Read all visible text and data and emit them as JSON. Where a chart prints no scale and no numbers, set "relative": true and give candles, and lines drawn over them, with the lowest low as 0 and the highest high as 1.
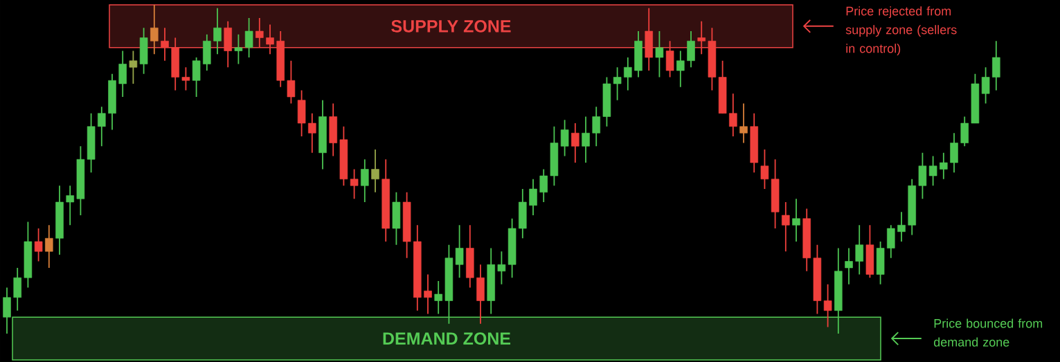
{
  "chart_data": {
    "type": "candlestick",
    "relative": true,
    "categories": [
      null,
      null,
      null,
      null,
      null,
      null,
      null,
      null,
      null,
      null,
      null,
      null,
      null,
      null,
      null,
      null,
      null,
      null,
      null,
      null,
      null,
      null,
      null,
      null,
      null,
      null,
      null,
      null,
      null,
      null,
      null,
      null,
      null,
      null,
      null,
      null,
      null,
      null,
      null,
      null,
      null,
      null,
      null,
      null,
      null,
      null,
      null,
      null,
      null,
      null,
      null,
      null,
      null,
      null,
      null,
      null,
      null,
      null,
      null,
      null,
      null,
      null,
      null,
      null,
      null,
      null,
      null,
      null,
      null,
      null,
      null,
      null,
      null,
      null,
      null,
      null,
      null,
      null,
      null,
      null,
      null,
      null,
      null,
      null,
      null,
      null,
      null,
      null,
      null,
      null,
      null,
      null,
      null,
      null,
      null
    ],
    "ohlc": [
      [
        0.05,
        0.14,
        0,
        0.11
      ],
      [
        0.11,
        0.2,
        0.07,
        0.17
      ],
      [
        0.17,
        0.34,
        0.14,
        0.28
      ],
      [
        0.28,
        0.32,
        0.22,
        0.25
      ],
      [
        0.29,
        0.33,
        0.2,
        0.25
      ],
      [
        0.29,
        0.45,
        0.24,
        0.4
      ],
      [
        0.4,
        0.45,
        0.33,
        0.42
      ],
      [
        0.41,
        0.57,
        0.36,
        0.53
      ],
      [
        0.53,
        0.67,
        0.49,
        0.63
      ],
      [
        0.63,
        0.69,
        0.57,
        0.67
      ],
      [
        0.67,
        0.79,
        0.62,
        0.77
      ],
      [
        0.76,
        0.86,
        0.72,
        0.82
      ],
      [
        0.81,
        0.86,
        0.76,
        0.83
      ],
      [
        0.82,
        0.93,
        0.79,
        0.9
      ],
      [
        0.93,
        1,
        0.85,
        0.89
      ],
      [
        0.89,
        0.93,
        0.83,
        0.87
      ],
      [
        0.87,
        0.9,
        0.74,
        0.78
      ],
      [
        0.78,
        0.81,
        0.74,
        0.77
      ],
      [
        0.77,
        0.84,
        0.72,
        0.83
      ],
      [
        0.82,
        0.91,
        0.8,
        0.89
      ],
      [
        0.89,
        0.99,
        0.85,
        0.93
      ],
      [
        0.93,
        0.95,
        0.81,
        0.86
      ],
      [
        0.86,
        0.91,
        0.82,
        0.87
      ],
      [
        0.87,
        0.96,
        0.84,
        0.92
      ],
      [
        0.92,
        0.96,
        0.87,
        0.9
      ],
      [
        0.9,
        0.94,
        0.85,
        0.88
      ],
      [
        0.89,
        0.92,
        0.75,
        0.77
      ],
      [
        0.77,
        0.83,
        0.7,
        0.72
      ],
      [
        0.71,
        0.74,
        0.6,
        0.64
      ],
      [
        0.64,
        0.67,
        0.55,
        0.61
      ],
      [
        0.55,
        0.71,
        0.5,
        0.66
      ],
      [
        0.66,
        0.7,
        0.54,
        0.58
      ],
      [
        0.59,
        0.63,
        0.45,
        0.47
      ],
      [
        0.47,
        0.5,
        0.41,
        0.45
      ],
      [
        0.45,
        0.53,
        0.4,
        0.5
      ],
      [
        0.47,
        0.56,
        0.43,
        0.5
      ],
      [
        0.47,
        0.53,
        0.28,
        0.32
      ],
      [
        0.32,
        0.43,
        0.27,
        0.4
      ],
      [
        0.4,
        0.43,
        0.23,
        0.28
      ],
      [
        0.28,
        0.33,
        0.07,
        0.11
      ],
      [
        0.13,
        0.18,
        0.06,
        0.11
      ],
      [
        0.1,
        0.16,
        0.06,
        0.12
      ],
      [
        0.1,
        0.27,
        0.03,
        0.23
      ],
      [
        0.21,
        0.33,
        0.17,
        0.26
      ],
      [
        0.26,
        0.33,
        0.14,
        0.17
      ],
      [
        0.17,
        0.21,
        0.03,
        0.1
      ],
      [
        0.1,
        0.26,
        0.06,
        0.21
      ],
      [
        0.19,
        0.25,
        0.15,
        0.21
      ],
      [
        0.21,
        0.35,
        0.17,
        0.32
      ],
      [
        0.32,
        0.44,
        0.29,
        0.4
      ],
      [
        0.39,
        0.47,
        0.36,
        0.44
      ],
      [
        0.43,
        0.5,
        0.4,
        0.48
      ],
      [
        0.48,
        0.63,
        0.45,
        0.58
      ],
      [
        0.57,
        0.65,
        0.54,
        0.62
      ],
      [
        0.61,
        0.64,
        0.52,
        0.57
      ],
      [
        0.57,
        0.66,
        0.52,
        0.61
      ],
      [
        0.61,
        0.69,
        0.57,
        0.66
      ],
      [
        0.66,
        0.78,
        0.63,
        0.76
      ],
      [
        0.76,
        0.81,
        0.71,
        0.78
      ],
      [
        0.78,
        0.84,
        0.74,
        0.81
      ],
      [
        0.8,
        0.92,
        0.78,
        0.89
      ],
      [
        0.92,
        0.99,
        0.8,
        0.84
      ],
      [
        0.84,
        0.92,
        0.78,
        0.87
      ],
      [
        0.86,
        0.89,
        0.78,
        0.8
      ],
      [
        0.8,
        0.86,
        0.75,
        0.83
      ],
      [
        0.83,
        0.92,
        0.81,
        0.89
      ],
      [
        0.9,
        0.95,
        0.85,
        0.89
      ],
      [
        0.89,
        0.93,
        0.74,
        0.78
      ],
      [
        0.78,
        0.83,
        0.67,
        0.67
      ],
      [
        0.67,
        0.73,
        0.6,
        0.63
      ],
      [
        0.63,
        0.7,
        0.58,
        0.61
      ],
      [
        0.63,
        0.67,
        0.49,
        0.52
      ],
      [
        0.51,
        0.56,
        0.44,
        0.47
      ],
      [
        0.47,
        0.53,
        0.32,
        0.37
      ],
      [
        0.36,
        0.4,
        0.25,
        0.33
      ],
      [
        0.33,
        0.41,
        0.28,
        0.35
      ],
      [
        0.35,
        0.38,
        0.19,
        0.23
      ],
      [
        0.23,
        0.27,
        0.06,
        0.1
      ],
      [
        0.1,
        0.15,
        0.02,
        0.07
      ],
      [
        0.07,
        0.26,
        0,
        0.19
      ],
      [
        0.2,
        0.26,
        0.15,
        0.22
      ],
      [
        0.22,
        0.33,
        0.18,
        0.27
      ],
      [
        0.27,
        0.33,
        0.17,
        0.18
      ],
      [
        0.18,
        0.28,
        0.15,
        0.26
      ],
      [
        0.26,
        0.33,
        0.23,
        0.32
      ],
      [
        0.31,
        0.37,
        0.28,
        0.33
      ],
      [
        0.33,
        0.47,
        0.3,
        0.45
      ],
      [
        0.45,
        0.55,
        0.41,
        0.51
      ],
      [
        0.48,
        0.54,
        0.45,
        0.51
      ],
      [
        0.5,
        0.55,
        0.47,
        0.52
      ],
      [
        0.52,
        0.61,
        0.49,
        0.58
      ],
      [
        0.58,
        0.66,
        0.57,
        0.64
      ],
      [
        0.64,
        0.79,
        0.64,
        0.76
      ],
      [
        0.73,
        0.81,
        0.7,
        0.78
      ],
      [
        0.78,
        0.89,
        0.74,
        0.84
      ]
    ],
    "colors": [
      "#4cc552",
      "#4cc552",
      "#4cc552",
      "#f0403c",
      "#d9803a",
      "#4cc552",
      "#4cc552",
      "#4cc552",
      "#4cc552",
      "#4cc552",
      "#4cc552",
      "#4cc552",
      "#98a84a",
      "#4cc552",
      "#d9803a",
      "#f0403c",
      "#f0403c",
      "#f0403c",
      "#4cc552",
      "#4cc552",
      "#4cc552",
      "#f0403c",
      "#4cc552",
      "#4cc552",
      "#f0403c",
      "#f0403c",
      "#f0403c",
      "#f0403c",
      "#f0403c",
      "#f0403c",
      "#4cc552",
      "#f0403c",
      "#f0403c",
      "#f0403c",
      "#4cc552",
      "#98a84a",
      "#f0403c",
      "#4cc552",
      "#f0403c",
      "#f0403c",
      "#f0403c",
      "#4cc552",
      "#4cc552",
      "#4cc552",
      "#f0403c",
      "#f0403c",
      "#4cc552",
      "#4cc552",
      "#4cc552",
      "#4cc552",
      "#4cc552",
      "#4cc552",
      "#4cc552",
      "#4cc552",
      "#f0403c",
      "#4cc552",
      "#4cc552",
      "#4cc552",
      "#4cc552",
      "#4cc552",
      "#4cc552",
      "#f0403c",
      "#4cc552",
      "#f0403c",
      "#4cc552",
      "#4cc552",
      "#f0403c",
      "#f0403c",
      "#f0403c",
      "#f0403c",
      "#d9803a",
      "#f0403c",
      "#f0403c",
      "#f0403c",
      "#f0403c",
      "#4cc552",
      "#f0403c",
      "#f0403c",
      "#f0403c",
      "#4cc552",
      "#4cc552",
      "#4cc552",
      "#f0403c",
      "#4cc552",
      "#4cc552",
      "#4cc552",
      "#4cc552",
      "#4cc552",
      "#4cc552",
      "#4cc552",
      "#4cc552",
      "#4cc552",
      "#4cc552",
      "#4cc552",
      "#4cc552"
    ],
    "bands": [
      {
        "axis": "y",
        "from": 0.87,
        "to": 1.0,
        "label": "SUPPLY ZONE",
        "color": "#ee4444"
      },
      {
        "axis": "y",
        "from": -0.08,
        "to": 0.05,
        "label": "DEMAND ZONE",
        "color": "#55cc55"
      }
    ],
    "annotations": [
      "Price rejected from supply zone (sellers in control)",
      "Price bounced from demand zone"
    ]
  }
}
